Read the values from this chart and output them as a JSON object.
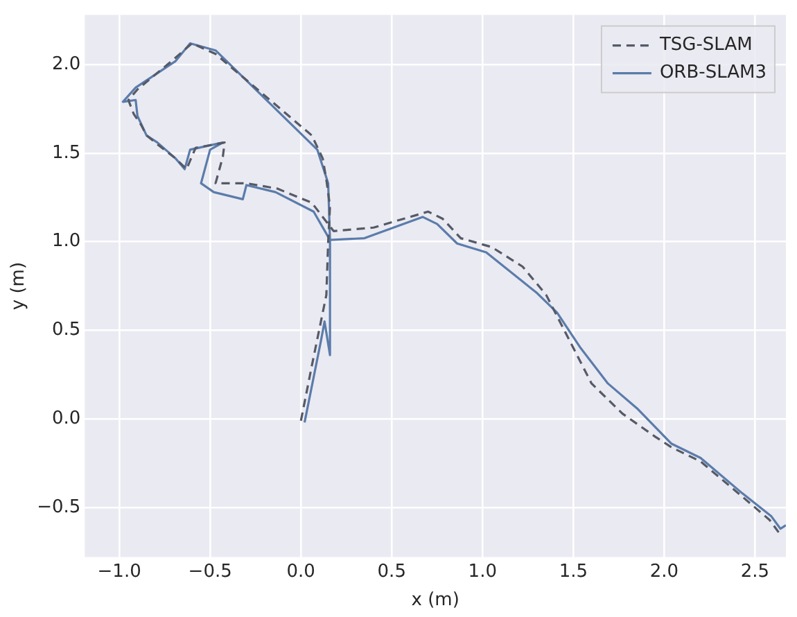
{
  "chart_data": {
    "type": "line",
    "xlabel": "x (m)",
    "ylabel": "y (m)",
    "xlim": [
      -1.19,
      2.67
    ],
    "ylim": [
      -0.78,
      2.28
    ],
    "xticks": [
      {
        "value": -1,
        "label": "−1.0"
      },
      {
        "value": -0.5,
        "label": "−0.5"
      },
      {
        "value": 0,
        "label": "0.0"
      },
      {
        "value": 0.5,
        "label": "0.5"
      },
      {
        "value": 1,
        "label": "1.0"
      },
      {
        "value": 1.5,
        "label": "1.5"
      },
      {
        "value": 2,
        "label": "2.0"
      },
      {
        "value": 2.5,
        "label": "2.5"
      }
    ],
    "yticks": [
      {
        "value": -0.5,
        "label": "−0.5"
      },
      {
        "value": 0,
        "label": "0.0"
      },
      {
        "value": 0.5,
        "label": "0.5"
      },
      {
        "value": 1,
        "label": "1.0"
      },
      {
        "value": 1.5,
        "label": "1.5"
      },
      {
        "value": 2,
        "label": "2.0"
      }
    ],
    "grid": true,
    "legend": "top right",
    "marker": "none",
    "series": [
      {
        "name": "TSG-SLAM",
        "color": "#555a66",
        "line_style": "dashed",
        "x": [
          0.0,
          0.06,
          0.1,
          0.14,
          0.15,
          0.16,
          0.14,
          0.12,
          0.06,
          -0.47,
          -0.6,
          -0.7,
          -0.9,
          -0.95,
          -0.92,
          -0.88,
          -0.85,
          -0.79,
          -0.69,
          -0.63,
          -0.58,
          -0.42,
          -0.43,
          -0.47,
          -0.3,
          -0.13,
          0.06,
          0.18,
          0.4,
          0.7,
          0.78,
          0.88,
          1.05,
          1.22,
          1.35,
          1.45,
          1.6,
          1.77,
          1.95,
          2.04,
          2.2,
          2.42,
          2.58,
          2.63
        ],
        "values": [
          -0.01,
          0.3,
          0.5,
          0.7,
          1.0,
          1.2,
          1.35,
          1.47,
          1.6,
          2.06,
          2.12,
          2.03,
          1.86,
          1.8,
          1.72,
          1.66,
          1.6,
          1.55,
          1.47,
          1.41,
          1.53,
          1.56,
          1.48,
          1.33,
          1.33,
          1.3,
          1.22,
          1.06,
          1.08,
          1.17,
          1.13,
          1.02,
          0.97,
          0.86,
          0.7,
          0.5,
          0.2,
          0.03,
          -0.1,
          -0.16,
          -0.24,
          -0.43,
          -0.57,
          -0.64
        ]
      },
      {
        "name": "ORB-SLAM3",
        "color": "#5b7cab",
        "line_style": "solid",
        "x": [
          0.02,
          0.11,
          0.13,
          0.16,
          0.16,
          0.15,
          0.09,
          -0.47,
          -0.61,
          -0.69,
          -0.91,
          -0.98,
          -0.91,
          -0.9,
          -0.85,
          -0.79,
          -0.69,
          -0.64,
          -0.61,
          -0.43,
          -0.5,
          -0.55,
          -0.48,
          -0.32,
          -0.3,
          -0.14,
          0.07,
          0.16,
          0.35,
          0.67,
          0.75,
          0.86,
          1.02,
          1.3,
          1.41,
          1.54,
          1.69,
          1.85,
          2.04,
          2.2,
          2.43,
          2.59,
          2.64,
          2.67
        ],
        "values": [
          -0.02,
          0.44,
          0.55,
          0.36,
          1.01,
          1.33,
          1.52,
          2.08,
          2.12,
          2.02,
          1.87,
          1.79,
          1.8,
          1.71,
          1.6,
          1.56,
          1.47,
          1.41,
          1.52,
          1.56,
          1.52,
          1.33,
          1.28,
          1.24,
          1.32,
          1.28,
          1.17,
          1.01,
          1.02,
          1.14,
          1.1,
          0.99,
          0.94,
          0.71,
          0.6,
          0.4,
          0.2,
          0.06,
          -0.14,
          -0.22,
          -0.42,
          -0.55,
          -0.62,
          -0.6
        ]
      }
    ]
  }
}
